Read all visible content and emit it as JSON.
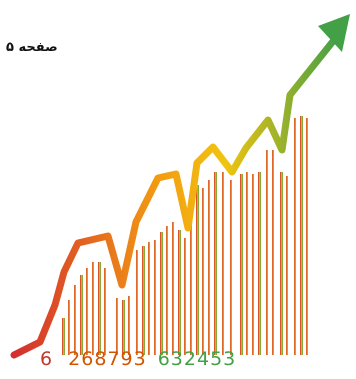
{
  "page_label": "صفحه ۵",
  "barcode_number_lead": "6",
  "barcode_number_main": "268793",
  "barcode_number_tail": "632453",
  "colors": {
    "start": "#d32f2f",
    "mid": "#f39c12",
    "end": "#4caf50",
    "bars_dark": "#c03a2b",
    "bars_light": "#7cb342"
  }
}
